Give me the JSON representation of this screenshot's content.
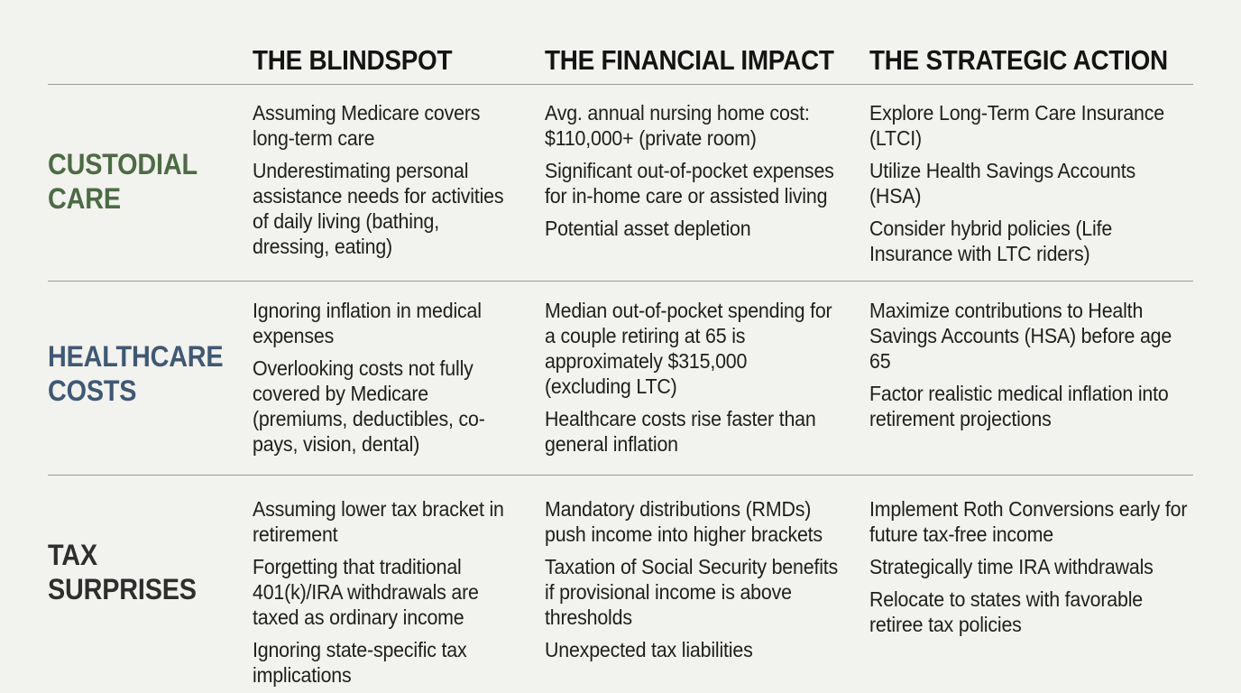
{
  "headers": {
    "blindspot": "THE BLINDSPOT",
    "impact": "THE FINANCIAL IMPACT",
    "action": "THE STRATEGIC ACTION"
  },
  "colors": {
    "custodial": "#4c6b45",
    "healthcare": "#3f5874",
    "tax": "#2e2e2e"
  },
  "rows": [
    {
      "label_line1": "CUSTODIAL",
      "label_line2": "CARE",
      "blindspot": [
        "Assuming Medicare covers long-term care",
        "Underestimating personal assistance needs for activities of daily living (bathing, dressing, eating)"
      ],
      "impact": [
        "Avg. annual nursing home cost: $110,000+ (private room)",
        "Significant out-of-pocket expenses for in-home care or assisted living",
        "Potential asset depletion"
      ],
      "action": [
        "Explore Long-Term Care Insurance (LTCI)",
        "Utilize Health Savings Accounts (HSA)",
        "Consider hybrid policies (Life Insurance with LTC riders)"
      ]
    },
    {
      "label_line1": "HEALTHCARE",
      "label_line2": "COSTS",
      "blindspot": [
        "Ignoring inflation in medical expenses",
        "Overlooking costs not fully covered by Medicare (premiums, deductibles, co-pays, vision, dental)"
      ],
      "impact": [
        "Median out-of-pocket spending for a couple retiring at 65 is approximately $315,000 (excluding LTC)",
        "Healthcare costs rise faster than general inflation"
      ],
      "action": [
        "Maximize contributions to Health Savings Accounts (HSA) before age 65",
        "Factor realistic medical inflation into retirement projections"
      ]
    },
    {
      "label_line1": "TAX",
      "label_line2": "SURPRISES",
      "blindspot": [
        "Assuming lower tax bracket in retirement",
        "Forgetting that traditional 401(k)/IRA withdrawals are taxed as ordinary income",
        "Ignoring state-specific tax implications"
      ],
      "impact": [
        "Mandatory distributions (RMDs) push income into higher brackets",
        "Taxation of Social Security benefits if provisional income is above thresholds",
        "Unexpected tax liabilities"
      ],
      "action": [
        "Implement Roth Conversions early for future tax-free income",
        "Strategically time IRA withdrawals",
        "Relocate to states with favorable retiree tax policies"
      ]
    }
  ]
}
